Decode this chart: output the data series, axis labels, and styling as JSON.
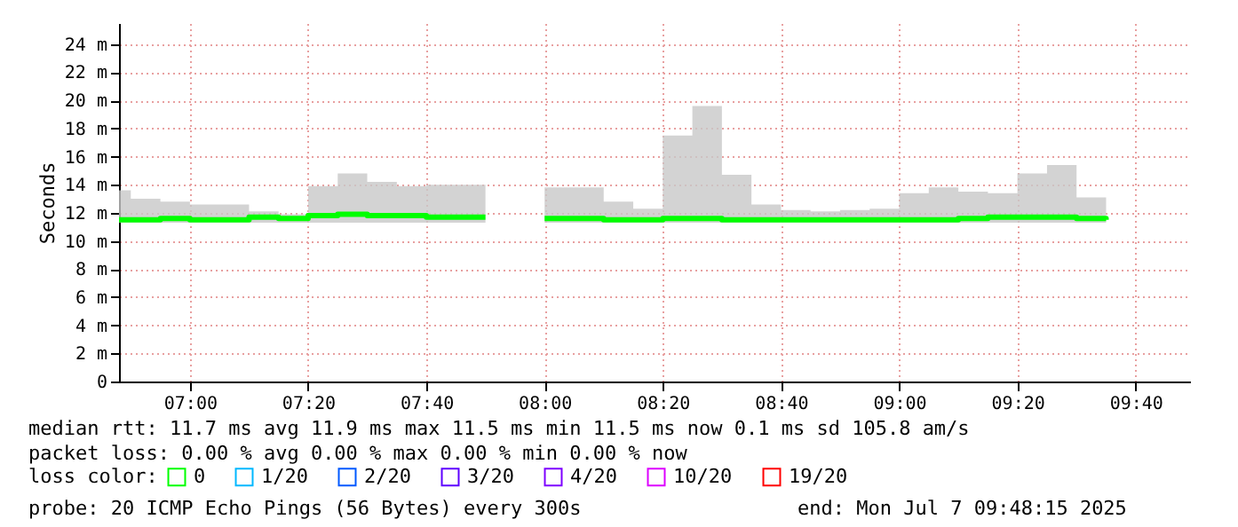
{
  "chart_data": {
    "type": "step",
    "ylabel": "Seconds",
    "legend_title": "loss color:",
    "legend": "bottom",
    "grid": true,
    "marker": "none",
    "line_style": "solid",
    "x": [
      6.8,
      6.8333,
      6.9167,
      7.0,
      7.0833,
      7.1667,
      7.25,
      7.3333,
      7.4167,
      7.5,
      7.5833,
      7.6667,
      7.75,
      7.8333,
      7.9167,
      8.0,
      8.0833,
      8.1667,
      8.25,
      8.3333,
      8.4167,
      8.5,
      8.5833,
      8.6667,
      8.75,
      8.8333,
      8.9167,
      9.0,
      9.0833,
      9.1667,
      9.25,
      9.3333,
      9.4167,
      9.5,
      9.5833
    ],
    "xlim": [
      6.8,
      9.82
    ],
    "xticks": [
      {
        "value": 7.0,
        "label": "07:00"
      },
      {
        "value": 7.3333,
        "label": "07:20"
      },
      {
        "value": 7.6667,
        "label": "07:40"
      },
      {
        "value": 8.0,
        "label": "08:00"
      },
      {
        "value": 8.3333,
        "label": "08:20"
      },
      {
        "value": 8.6667,
        "label": "08:40"
      },
      {
        "value": 9.0,
        "label": "09:00"
      },
      {
        "value": 9.3333,
        "label": "09:20"
      },
      {
        "value": 9.6667,
        "label": "09:40"
      }
    ],
    "ylim": [
      0,
      25.5
    ],
    "yticks": [
      0,
      {
        "value": 2,
        "label": "2 m"
      },
      {
        "value": 4,
        "label": "4 m"
      },
      {
        "value": 6,
        "label": "6 m"
      },
      {
        "value": 8,
        "label": "8 m"
      },
      {
        "value": 10,
        "label": "10 m"
      },
      {
        "value": 12,
        "label": "12 m"
      },
      {
        "value": 14,
        "label": "14 m"
      },
      {
        "value": 16,
        "label": "16 m"
      },
      {
        "value": 18,
        "label": "18 m"
      },
      {
        "value": 20,
        "label": "20 m"
      },
      {
        "value": 22,
        "label": "22 m"
      },
      {
        "value": 24,
        "label": "24 m"
      }
    ],
    "series": [
      {
        "name": "0",
        "color": "#00ff00",
        "values": [
          11.5,
          11.5,
          11.6,
          11.5,
          11.5,
          11.7,
          11.6,
          11.8,
          11.9,
          11.8,
          11.8,
          11.7,
          11.7,
          11.7,
          null,
          11.6,
          11.6,
          11.5,
          11.5,
          11.6,
          11.6,
          11.5,
          11.5,
          11.5,
          11.5,
          11.5,
          11.5,
          11.5,
          11.5,
          11.6,
          11.7,
          11.7,
          11.7,
          11.6,
          11.5
        ],
        "lower": [
          11.3,
          11.3,
          11.3,
          11.3,
          11.3,
          11.3,
          11.3,
          11.3,
          11.3,
          11.3,
          11.3,
          11.3,
          11.3,
          11.3,
          null,
          11.3,
          11.3,
          11.3,
          11.3,
          11.3,
          11.3,
          11.3,
          11.3,
          11.3,
          11.3,
          11.3,
          11.3,
          11.3,
          11.3,
          11.3,
          11.3,
          11.3,
          11.3,
          11.3,
          11.3
        ],
        "upper": [
          13.6,
          13.0,
          12.8,
          12.6,
          12.6,
          12.1,
          11.9,
          13.9,
          14.8,
          14.2,
          13.9,
          14.0,
          14.0,
          14.0,
          null,
          13.8,
          13.8,
          12.8,
          12.3,
          17.5,
          19.6,
          14.7,
          12.6,
          12.2,
          12.1,
          12.2,
          12.3,
          13.4,
          13.8,
          13.5,
          13.4,
          14.8,
          15.4,
          13.1,
          12.2
        ]
      },
      {
        "name": "1/20",
        "color": "#00b8ff",
        "values": [
          null,
          null,
          null,
          null,
          null,
          null,
          null,
          null,
          null,
          null,
          null,
          null,
          null,
          null,
          null,
          null,
          null,
          null,
          null,
          null,
          null,
          null,
          null,
          null,
          null,
          null,
          null,
          null,
          null,
          null,
          null,
          null,
          null,
          null,
          null
        ]
      },
      {
        "name": "2/20",
        "color": "#0059ff",
        "values": [
          null,
          null,
          null,
          null,
          null,
          null,
          null,
          null,
          null,
          null,
          null,
          null,
          null,
          null,
          null,
          null,
          null,
          null,
          null,
          null,
          null,
          null,
          null,
          null,
          null,
          null,
          null,
          null,
          null,
          null,
          null,
          null,
          null,
          null,
          null
        ]
      },
      {
        "name": "3/20",
        "color": "#5e00ff",
        "values": [
          null,
          null,
          null,
          null,
          null,
          null,
          null,
          null,
          null,
          null,
          null,
          null,
          null,
          null,
          null,
          null,
          null,
          null,
          null,
          null,
          null,
          null,
          null,
          null,
          null,
          null,
          null,
          null,
          null,
          null,
          null,
          null,
          null,
          null,
          null
        ]
      },
      {
        "name": "4/20",
        "color": "#7e00ff",
        "values": [
          null,
          null,
          null,
          null,
          null,
          null,
          null,
          null,
          null,
          null,
          null,
          null,
          null,
          null,
          null,
          null,
          null,
          null,
          null,
          null,
          null,
          null,
          null,
          null,
          null,
          null,
          null,
          null,
          null,
          null,
          null,
          null,
          null,
          null,
          null
        ]
      },
      {
        "name": "10/20",
        "color": "#dd00ff",
        "values": [
          null,
          null,
          null,
          null,
          null,
          null,
          null,
          null,
          null,
          null,
          null,
          null,
          null,
          null,
          null,
          null,
          null,
          null,
          null,
          null,
          null,
          null,
          null,
          null,
          null,
          null,
          null,
          null,
          null,
          null,
          null,
          null,
          null,
          null,
          null
        ]
      },
      {
        "name": "19/20",
        "color": "#ff0000",
        "values": [
          null,
          null,
          null,
          null,
          null,
          null,
          null,
          null,
          null,
          null,
          null,
          null,
          null,
          null,
          null,
          null,
          null,
          null,
          null,
          null,
          null,
          null,
          null,
          null,
          null,
          null,
          null,
          null,
          null,
          null,
          null,
          null,
          null,
          null,
          null
        ]
      }
    ],
    "annotations": [
      "median rtt:  11.7 ms avg  11.9 ms max  11.5 ms min  11.5 ms now  0.1 ms sd  105.8   am/s",
      "packet loss: 0.00 % avg  0.00 % max  0.00 % min  0.00 % now",
      "probe:       20 ICMP Echo Pings (56 Bytes) every 300s",
      "end: Mon Jul  7 09:48:15 2025"
    ]
  }
}
